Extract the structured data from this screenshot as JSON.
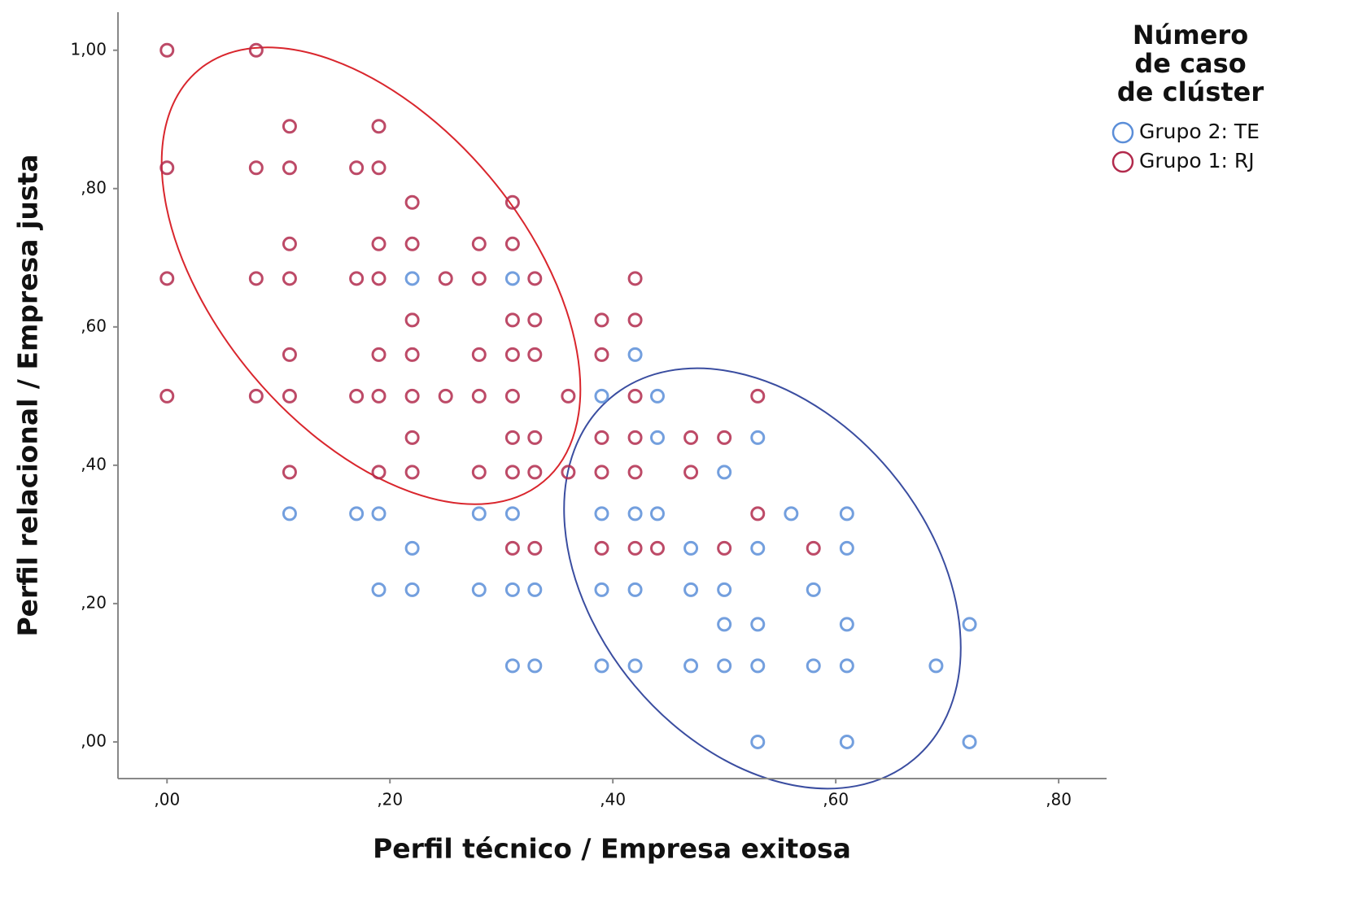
{
  "chart_data": {
    "type": "scatter",
    "x_label": "Perfil técnico / Empresa exitosa",
    "y_label": "Perfil relacional / Empresa justa",
    "legend_title": [
      "Número",
      "de caso",
      "de clúster"
    ],
    "legend": "right",
    "xlim": [
      -0.044,
      0.843
    ],
    "ylim": [
      -0.053,
      1.055
    ],
    "xticks": [
      {
        "value": 0,
        "label": ",00"
      },
      {
        "value": 0.2,
        "label": ",20"
      },
      {
        "value": 0.4,
        "label": ",40"
      },
      {
        "value": 0.6,
        "label": ",60"
      },
      {
        "value": 0.8,
        "label": ",80"
      }
    ],
    "yticks": [
      {
        "value": 0,
        "label": ",00"
      },
      {
        "value": 0.2,
        "label": ",20"
      },
      {
        "value": 0.4,
        "label": ",40"
      },
      {
        "value": 0.6,
        "label": ",60"
      },
      {
        "value": 0.8,
        "label": ",80"
      },
      {
        "value": 1,
        "label": "1,00"
      }
    ],
    "series": [
      {
        "name": "Grupo 2: TE",
        "color": "#5b8ed8",
        "x": [
          0.22,
          0.31,
          0.42,
          0.39,
          0.44,
          0.44,
          0.53,
          0.5,
          0.11,
          0.17,
          0.19,
          0.28,
          0.31,
          0.39,
          0.42,
          0.44,
          0.56,
          0.61,
          0.22,
          0.47,
          0.53,
          0.61,
          0.19,
          0.22,
          0.28,
          0.31,
          0.33,
          0.39,
          0.42,
          0.47,
          0.5,
          0.58,
          0.5,
          0.53,
          0.61,
          0.72,
          0.31,
          0.33,
          0.39,
          0.42,
          0.47,
          0.5,
          0.53,
          0.58,
          0.61,
          0.69,
          0.53,
          0.61,
          0.72
        ],
        "values": [
          0.67,
          0.67,
          0.56,
          0.5,
          0.5,
          0.44,
          0.44,
          0.39,
          0.33,
          0.33,
          0.33,
          0.33,
          0.33,
          0.33,
          0.33,
          0.33,
          0.33,
          0.33,
          0.28,
          0.28,
          0.28,
          0.28,
          0.22,
          0.22,
          0.22,
          0.22,
          0.22,
          0.22,
          0.22,
          0.22,
          0.22,
          0.22,
          0.17,
          0.17,
          0.17,
          0.17,
          0.11,
          0.11,
          0.11,
          0.11,
          0.11,
          0.11,
          0.11,
          0.11,
          0.11,
          0.11,
          0,
          0,
          0
        ]
      },
      {
        "name": "Grupo 1: RJ",
        "color": "#b22a4c",
        "x": [
          0,
          0.08,
          0.11,
          0.19,
          0,
          0.08,
          0.11,
          0.17,
          0.19,
          0.22,
          0.31,
          0.11,
          0.19,
          0.22,
          0.28,
          0.31,
          0,
          0.08,
          0.11,
          0.17,
          0.19,
          0.25,
          0.28,
          0.33,
          0.42,
          0.22,
          0.31,
          0.33,
          0.39,
          0.42,
          0.11,
          0.19,
          0.22,
          0.28,
          0.31,
          0.33,
          0.39,
          0,
          0.08,
          0.11,
          0.17,
          0.19,
          0.22,
          0.25,
          0.28,
          0.31,
          0.36,
          0.42,
          0.53,
          0.22,
          0.31,
          0.33,
          0.39,
          0.42,
          0.47,
          0.5,
          0.11,
          0.19,
          0.22,
          0.28,
          0.31,
          0.33,
          0.36,
          0.39,
          0.42,
          0.47,
          0.53,
          0.31,
          0.33,
          0.39,
          0.42,
          0.44,
          0.5,
          0.58
        ],
        "values": [
          1,
          1,
          0.89,
          0.89,
          0.83,
          0.83,
          0.83,
          0.83,
          0.83,
          0.78,
          0.78,
          0.72,
          0.72,
          0.72,
          0.72,
          0.72,
          0.67,
          0.67,
          0.67,
          0.67,
          0.67,
          0.67,
          0.67,
          0.67,
          0.67,
          0.61,
          0.61,
          0.61,
          0.61,
          0.61,
          0.56,
          0.56,
          0.56,
          0.56,
          0.56,
          0.56,
          0.56,
          0.5,
          0.5,
          0.5,
          0.5,
          0.5,
          0.5,
          0.5,
          0.5,
          0.5,
          0.5,
          0.5,
          0.5,
          0.44,
          0.44,
          0.44,
          0.44,
          0.44,
          0.44,
          0.44,
          0.39,
          0.39,
          0.39,
          0.39,
          0.39,
          0.39,
          0.39,
          0.39,
          0.39,
          0.39,
          0.33,
          0.28,
          0.28,
          0.28,
          0.28,
          0.28,
          0.28,
          0.28
        ]
      }
    ]
  }
}
